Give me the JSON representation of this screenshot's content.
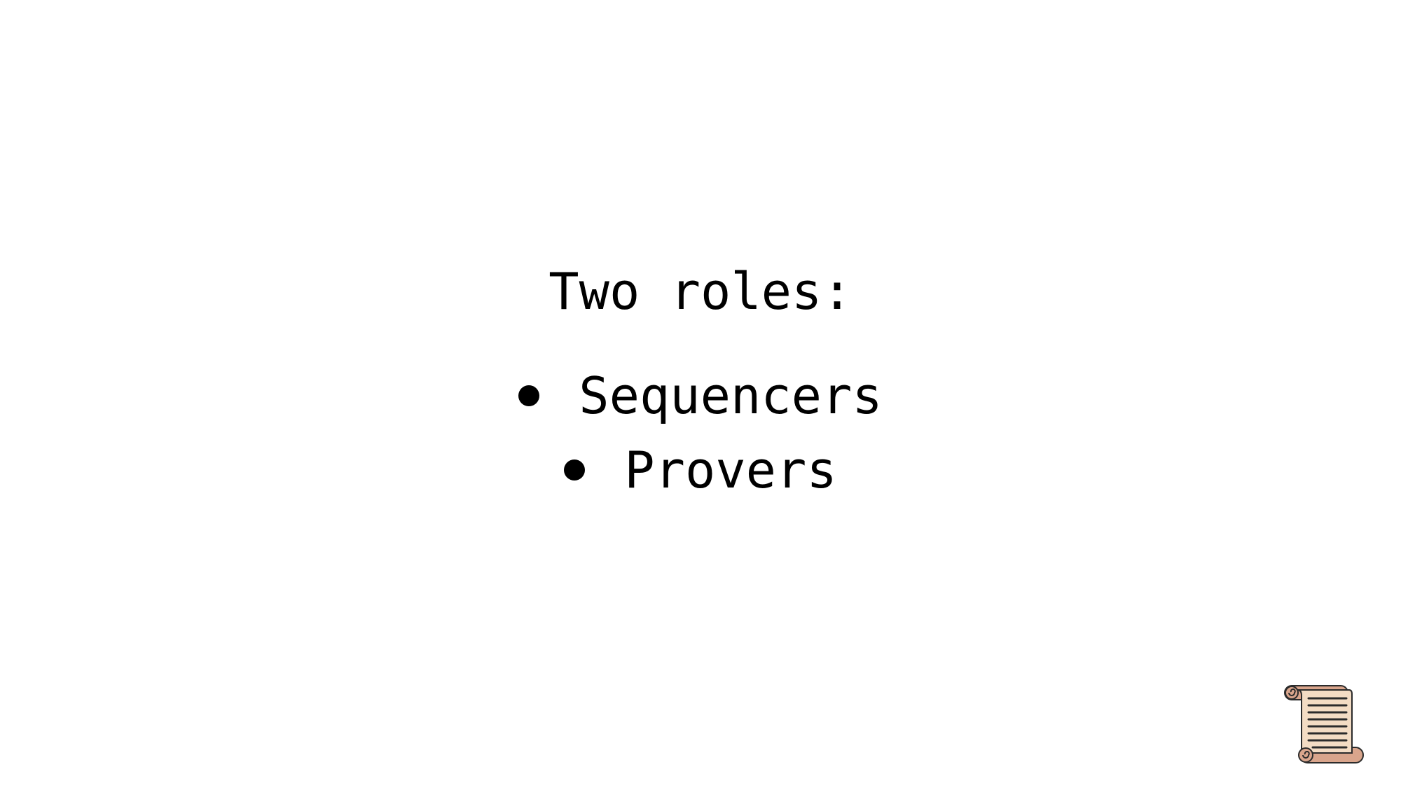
{
  "slide": {
    "title": "Two roles:",
    "bullets": [
      {
        "label": "Sequencers"
      },
      {
        "label": "Provers"
      }
    ]
  },
  "decoration": {
    "icon": "scroll-icon",
    "colors": {
      "parchment": "#f3dcc4",
      "roll": "#d9a58c",
      "outline": "#2b2b2b"
    }
  }
}
